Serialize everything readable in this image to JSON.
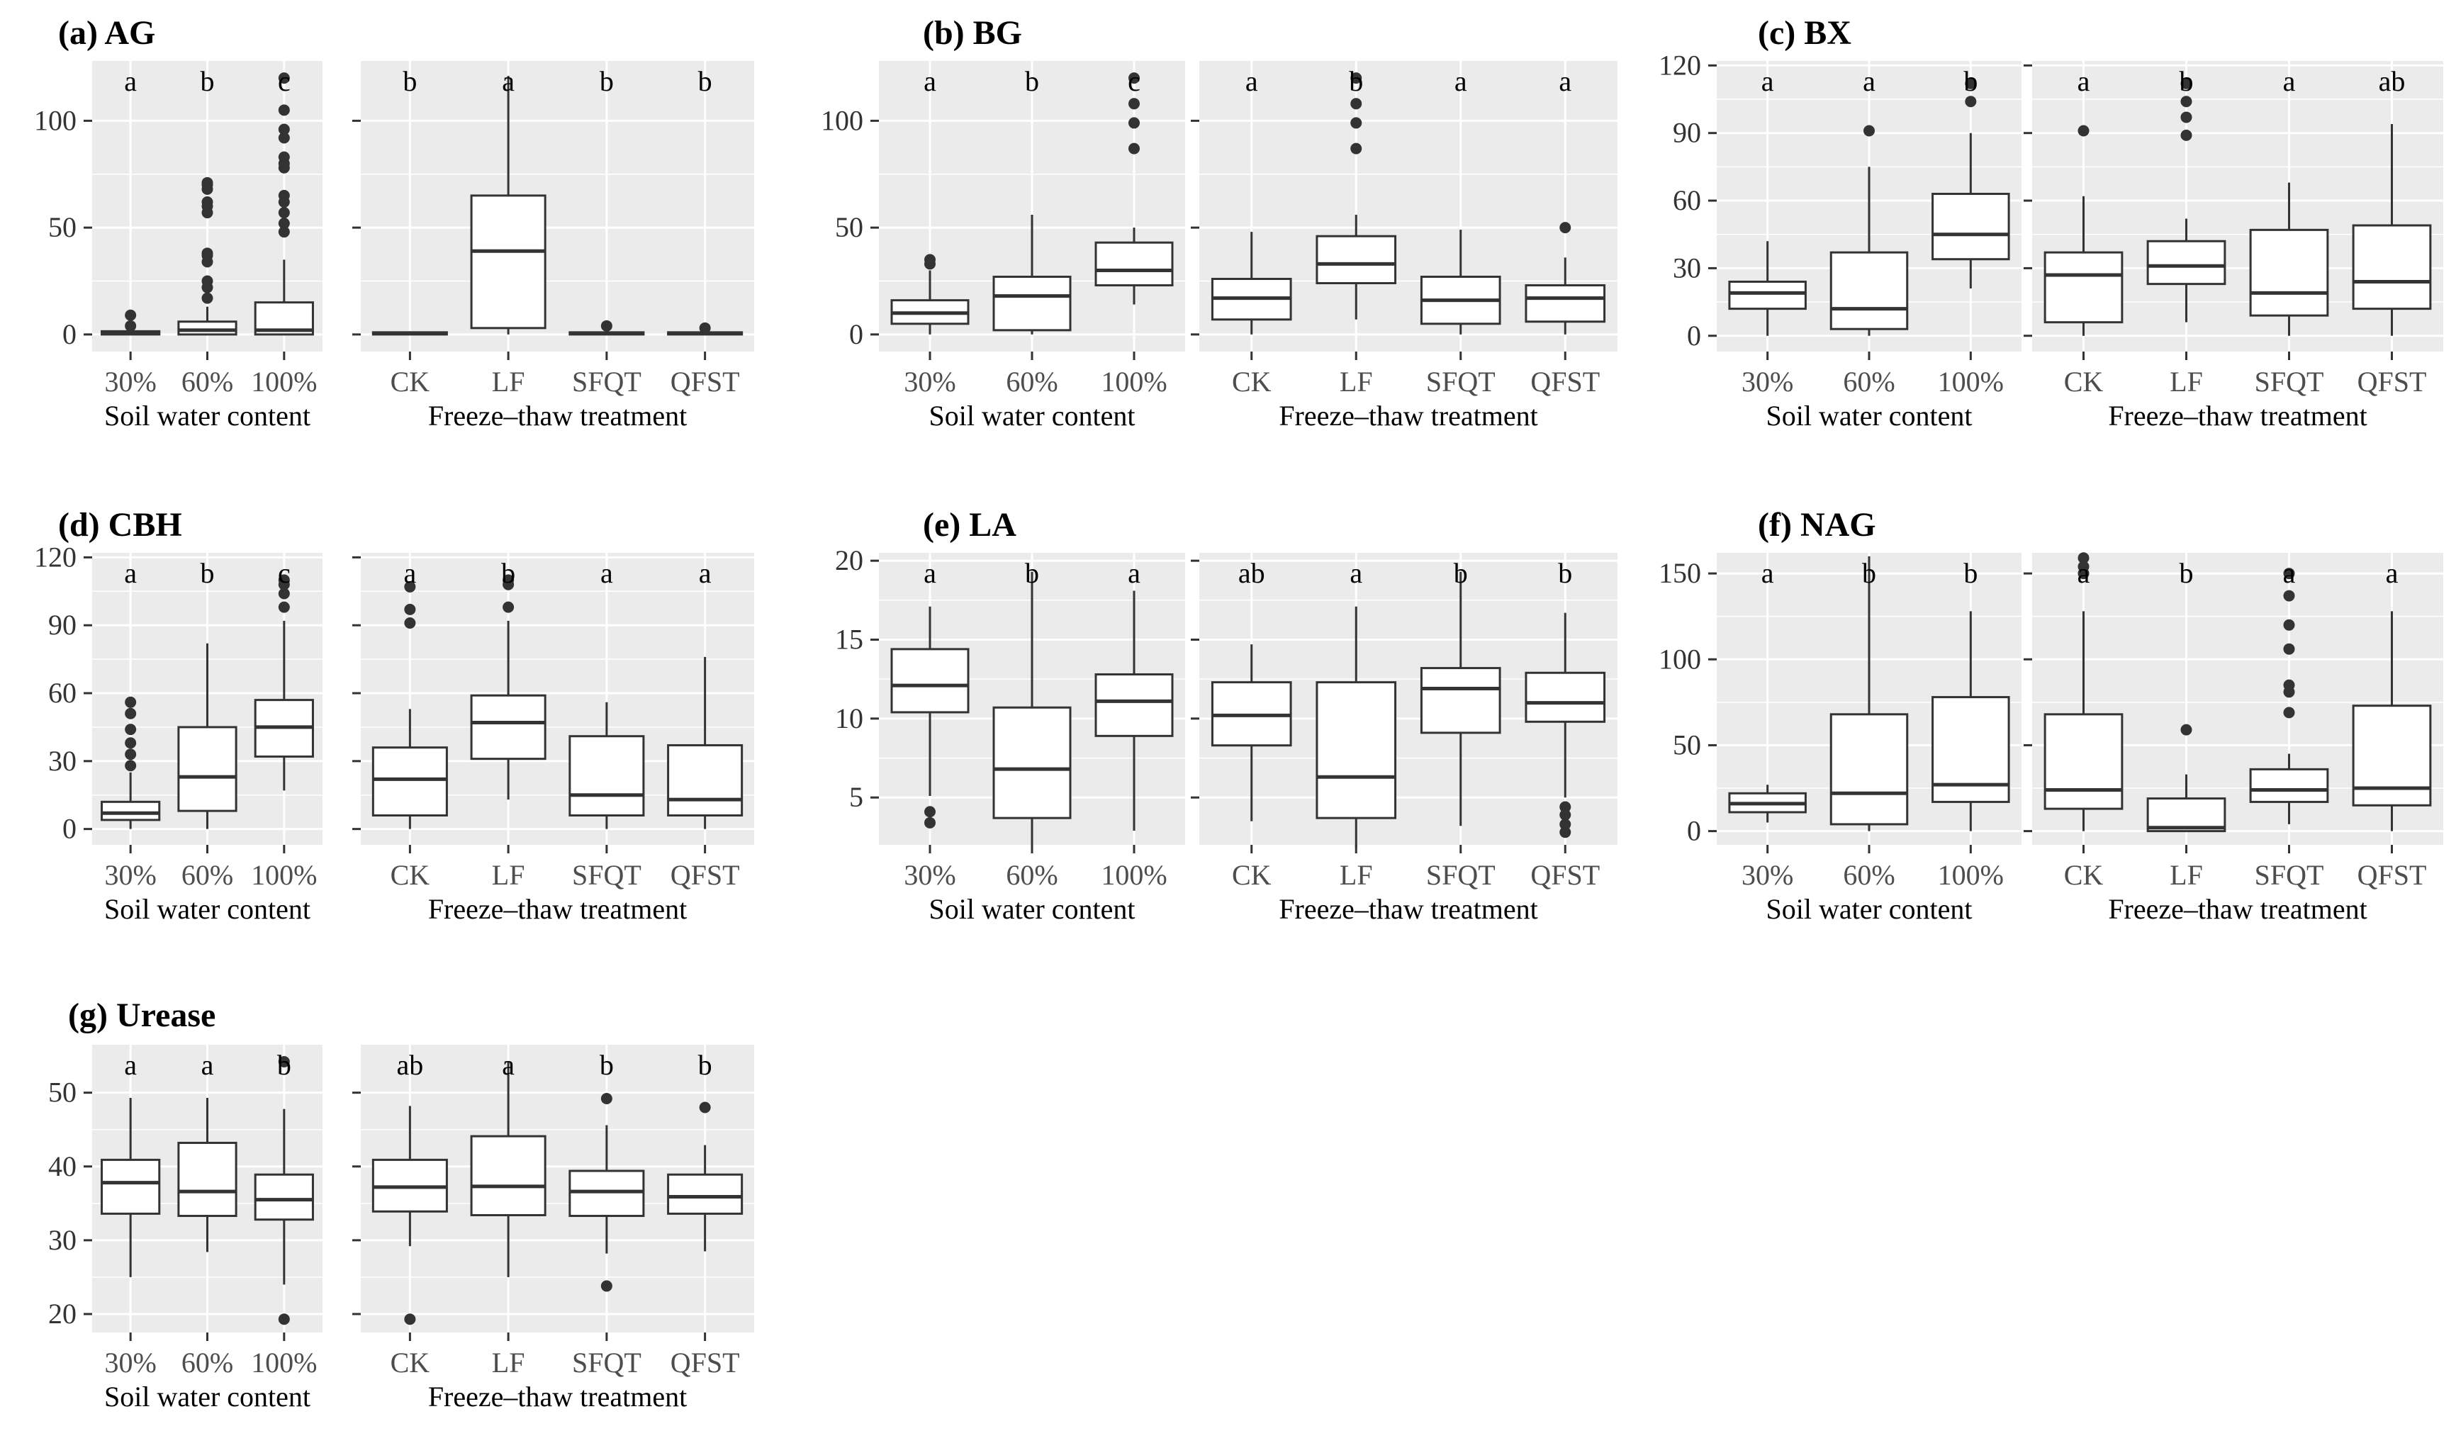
{
  "figure": {
    "groups": {
      "water": {
        "xlabel": "Soil water content",
        "categories": [
          "30%",
          "60%",
          "100%"
        ]
      },
      "ft": {
        "xlabel": "Freeze–thaw treatment",
        "categories": [
          "CK",
          "LF",
          "SFQT",
          "QFST"
        ]
      }
    }
  },
  "chart_data": [
    {
      "id": "ag",
      "type": "boxplot",
      "title": "(a) AG",
      "ylim": [
        -8,
        128
      ],
      "yticks": [
        0,
        50,
        100
      ],
      "water": [
        {
          "q1": 0,
          "med": 0.5,
          "q3": 1.5,
          "lo": 0,
          "hi": 3,
          "out": [
            4,
            9
          ],
          "letter": "a"
        },
        {
          "q1": 0,
          "med": 2,
          "q3": 6,
          "lo": 0,
          "hi": 13,
          "out": [
            17,
            22,
            25,
            34,
            37,
            38,
            57,
            60,
            62,
            68,
            70,
            71
          ],
          "letter": "b"
        },
        {
          "q1": 0,
          "med": 2,
          "q3": 15,
          "lo": 0,
          "hi": 35,
          "out": [
            48,
            52,
            57,
            62,
            65,
            78,
            80,
            83,
            92,
            96,
            105,
            120
          ],
          "letter": "c"
        }
      ],
      "ft": [
        {
          "q1": 0,
          "med": 0.5,
          "q3": 1,
          "lo": 0,
          "hi": 1.5,
          "out": [],
          "letter": "b"
        },
        {
          "q1": 3,
          "med": 39,
          "q3": 65,
          "lo": 0,
          "hi": 121,
          "out": [],
          "letter": "a"
        },
        {
          "q1": 0,
          "med": 0.5,
          "q3": 1,
          "lo": 0,
          "hi": 2,
          "out": [
            4
          ],
          "letter": "b"
        },
        {
          "q1": 0,
          "med": 0.5,
          "q3": 1,
          "lo": 0,
          "hi": 2,
          "out": [
            3
          ],
          "letter": "b"
        }
      ]
    },
    {
      "id": "bg",
      "type": "boxplot",
      "title": "(b) BG",
      "ylim": [
        -8,
        128
      ],
      "yticks": [
        0,
        50,
        100
      ],
      "water": [
        {
          "q1": 5,
          "med": 10,
          "q3": 16,
          "lo": 0,
          "hi": 30,
          "out": [
            33,
            35
          ],
          "letter": "a"
        },
        {
          "q1": 2,
          "med": 18,
          "q3": 27,
          "lo": 0,
          "hi": 56,
          "out": [],
          "letter": "b"
        },
        {
          "q1": 23,
          "med": 30,
          "q3": 43,
          "lo": 14,
          "hi": 50,
          "out": [
            87,
            99,
            108,
            120
          ],
          "letter": "c"
        }
      ],
      "ft": [
        {
          "q1": 7,
          "med": 17,
          "q3": 26,
          "lo": 0,
          "hi": 48,
          "out": [],
          "letter": "a"
        },
        {
          "q1": 24,
          "med": 33,
          "q3": 46,
          "lo": 7,
          "hi": 56,
          "out": [
            87,
            99,
            108,
            120
          ],
          "letter": "b"
        },
        {
          "q1": 5,
          "med": 16,
          "q3": 27,
          "lo": 0,
          "hi": 49,
          "out": [],
          "letter": "a"
        },
        {
          "q1": 6,
          "med": 17,
          "q3": 23,
          "lo": 0,
          "hi": 36,
          "out": [
            50
          ],
          "letter": "a"
        }
      ]
    },
    {
      "id": "bx",
      "type": "boxplot",
      "title": "(c) BX",
      "ylim": [
        -7,
        122
      ],
      "yticks": [
        0,
        30,
        60,
        90,
        120
      ],
      "water": [
        {
          "q1": 12,
          "med": 19,
          "q3": 24,
          "lo": 0,
          "hi": 42,
          "out": [],
          "letter": "a"
        },
        {
          "q1": 3,
          "med": 12,
          "q3": 37,
          "lo": 0,
          "hi": 75,
          "out": [
            91
          ],
          "letter": "a"
        },
        {
          "q1": 34,
          "med": 45,
          "q3": 63,
          "lo": 21,
          "hi": 90,
          "out": [
            104,
            112
          ],
          "letter": "b"
        }
      ],
      "ft": [
        {
          "q1": 6,
          "med": 27,
          "q3": 37,
          "lo": 0,
          "hi": 62,
          "out": [
            91
          ],
          "letter": "a"
        },
        {
          "q1": 23,
          "med": 31,
          "q3": 42,
          "lo": 6,
          "hi": 52,
          "out": [
            89,
            97,
            104,
            112
          ],
          "letter": "b"
        },
        {
          "q1": 9,
          "med": 19,
          "q3": 47,
          "lo": 0,
          "hi": 68,
          "out": [],
          "letter": "a"
        },
        {
          "q1": 12,
          "med": 24,
          "q3": 49,
          "lo": 0,
          "hi": 94,
          "out": [],
          "letter": "ab"
        }
      ]
    },
    {
      "id": "cbh",
      "type": "boxplot",
      "title": "(d) CBH",
      "ylim": [
        -7,
        122
      ],
      "yticks": [
        0,
        30,
        60,
        90,
        120
      ],
      "water": [
        {
          "q1": 4,
          "med": 7,
          "q3": 12,
          "lo": 0,
          "hi": 25,
          "out": [
            28,
            33,
            38,
            44,
            51,
            56
          ],
          "letter": "a"
        },
        {
          "q1": 8,
          "med": 23,
          "q3": 45,
          "lo": 0,
          "hi": 82,
          "out": [],
          "letter": "b"
        },
        {
          "q1": 32,
          "med": 45,
          "q3": 57,
          "lo": 17,
          "hi": 92,
          "out": [
            98,
            104,
            108,
            110
          ],
          "letter": "c"
        }
      ],
      "ft": [
        {
          "q1": 6,
          "med": 22,
          "q3": 36,
          "lo": 0,
          "hi": 53,
          "out": [
            91,
            97,
            107
          ],
          "letter": "a"
        },
        {
          "q1": 31,
          "med": 47,
          "q3": 59,
          "lo": 13,
          "hi": 92,
          "out": [
            98,
            108,
            110
          ],
          "letter": "b"
        },
        {
          "q1": 6,
          "med": 15,
          "q3": 41,
          "lo": 0,
          "hi": 56,
          "out": [],
          "letter": "a"
        },
        {
          "q1": 6,
          "med": 13,
          "q3": 37,
          "lo": 0,
          "hi": 76,
          "out": [],
          "letter": "a"
        }
      ]
    },
    {
      "id": "la",
      "type": "boxplot",
      "title": "(e) LA",
      "ylim": [
        2,
        20.5
      ],
      "yticks": [
        5,
        10,
        15,
        20
      ],
      "water": [
        {
          "q1": 10.4,
          "med": 12.1,
          "q3": 14.4,
          "lo": 5.1,
          "hi": 17.1,
          "out": [
            3.4,
            4.1
          ],
          "letter": "a"
        },
        {
          "q1": 3.7,
          "med": 6.8,
          "q3": 10.7,
          "lo": 1.8,
          "hi": 19.3,
          "out": [],
          "letter": "b"
        },
        {
          "q1": 8.9,
          "med": 11.1,
          "q3": 12.8,
          "lo": 2.9,
          "hi": 18.1,
          "out": [],
          "letter": "a"
        }
      ],
      "ft": [
        {
          "q1": 8.3,
          "med": 10.2,
          "q3": 12.3,
          "lo": 3.5,
          "hi": 14.7,
          "out": [],
          "letter": "ab"
        },
        {
          "q1": 3.7,
          "med": 6.3,
          "q3": 12.3,
          "lo": 1.8,
          "hi": 17.1,
          "out": [],
          "letter": "a"
        },
        {
          "q1": 9.1,
          "med": 11.9,
          "q3": 13.2,
          "lo": 3.2,
          "hi": 19.3,
          "out": [],
          "letter": "b"
        },
        {
          "q1": 9.8,
          "med": 11.0,
          "q3": 12.9,
          "lo": 5.0,
          "hi": 16.7,
          "out": [
            2.8,
            3.3,
            3.9,
            4.4
          ],
          "letter": "b"
        }
      ]
    },
    {
      "id": "nag",
      "type": "boxplot",
      "title": "(f) NAG",
      "ylim": [
        -8,
        162
      ],
      "yticks": [
        0,
        50,
        100,
        150
      ],
      "water": [
        {
          "q1": 11,
          "med": 16,
          "q3": 22,
          "lo": 5,
          "hi": 27,
          "out": [],
          "letter": "a"
        },
        {
          "q1": 4,
          "med": 22,
          "q3": 68,
          "lo": 0,
          "hi": 160,
          "out": [],
          "letter": "b"
        },
        {
          "q1": 17,
          "med": 27,
          "q3": 78,
          "lo": 0,
          "hi": 128,
          "out": [],
          "letter": "b"
        }
      ],
      "ft": [
        {
          "q1": 13,
          "med": 24,
          "q3": 68,
          "lo": 0,
          "hi": 128,
          "out": [
            150,
            154,
            159
          ],
          "letter": "a"
        },
        {
          "q1": 0,
          "med": 2,
          "q3": 19,
          "lo": 0,
          "hi": 33,
          "out": [
            59
          ],
          "letter": "b"
        },
        {
          "q1": 17,
          "med": 24,
          "q3": 36,
          "lo": 4,
          "hi": 45,
          "out": [
            69,
            81,
            85,
            106,
            120,
            137,
            150
          ],
          "letter": "a"
        },
        {
          "q1": 15,
          "med": 25,
          "q3": 73,
          "lo": 0,
          "hi": 128,
          "out": [],
          "letter": "a"
        }
      ]
    },
    {
      "id": "urease",
      "type": "boxplot",
      "title": "(g) Urease",
      "ylim": [
        17.5,
        56.5
      ],
      "yticks": [
        20,
        30,
        40,
        50
      ],
      "water": [
        {
          "q1": 33.6,
          "med": 37.8,
          "q3": 40.9,
          "lo": 25.0,
          "hi": 49.3,
          "out": [],
          "letter": "a"
        },
        {
          "q1": 33.3,
          "med": 36.6,
          "q3": 43.2,
          "lo": 28.4,
          "hi": 49.3,
          "out": [],
          "letter": "a"
        },
        {
          "q1": 32.8,
          "med": 35.5,
          "q3": 38.9,
          "lo": 24.0,
          "hi": 47.8,
          "out": [
            19.3,
            54.2
          ],
          "letter": "b"
        }
      ],
      "ft": [
        {
          "q1": 33.9,
          "med": 37.2,
          "q3": 40.9,
          "lo": 29.2,
          "hi": 48.2,
          "out": [
            19.3
          ],
          "letter": "ab"
        },
        {
          "q1": 33.4,
          "med": 37.3,
          "q3": 44.1,
          "lo": 25.0,
          "hi": 54.2,
          "out": [],
          "letter": "a"
        },
        {
          "q1": 33.3,
          "med": 36.6,
          "q3": 39.4,
          "lo": 28.2,
          "hi": 45.6,
          "out": [
            23.8,
            49.2
          ],
          "letter": "b"
        },
        {
          "q1": 33.6,
          "med": 35.9,
          "q3": 38.9,
          "lo": 28.5,
          "hi": 42.9,
          "out": [
            48.0
          ],
          "letter": "b"
        }
      ]
    }
  ]
}
